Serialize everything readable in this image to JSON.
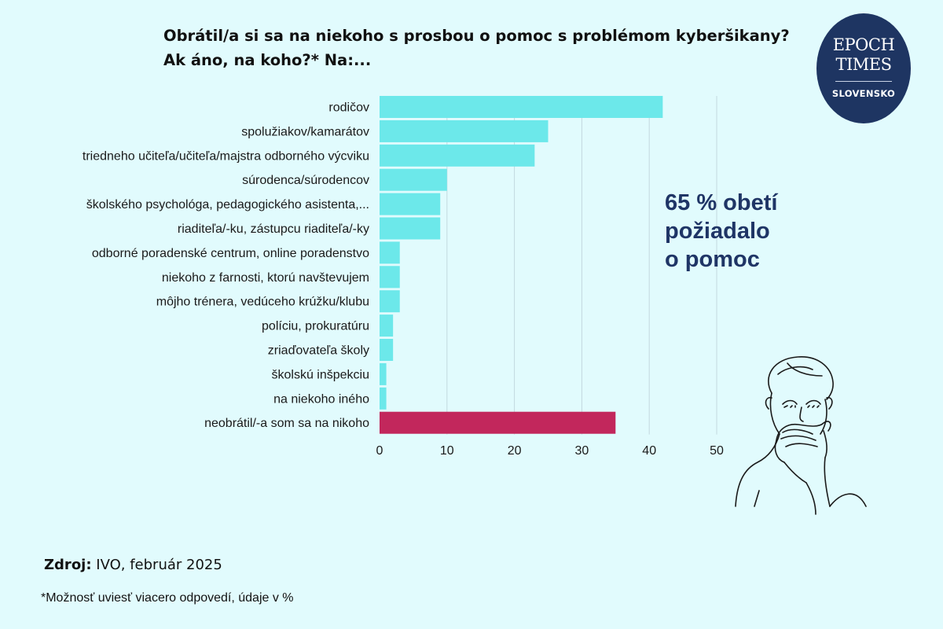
{
  "title_lines": [
    "Obrátil/a si sa na niekoho s prosbou o pomoc s problémom kyberšikany?",
    "Ak áno, na koho?* Na:..."
  ],
  "callout_lines": [
    "65 % obetí",
    "požiadalo",
    "o pomoc"
  ],
  "logo": {
    "line1": "EPOCH",
    "line2": "TIMES",
    "line3": "SLOVENSKO"
  },
  "source": {
    "label": "Zdroj:",
    "text": "IVO, február 2025"
  },
  "footnote": "*Možnosť uviesť viacero odpovedí, údaje v %",
  "colors": {
    "bar": "#6ce8ea",
    "highlight": "#c2275c",
    "callout": "#1f3566",
    "logo_bg": "#1e3562",
    "background": "#e1fbfd",
    "grid": "#c2d9df"
  },
  "illustration_icon": "embarrassed-person-covering-mouth-icon",
  "chart_data": {
    "type": "bar",
    "orientation": "horizontal",
    "categories": [
      "rodičov",
      "spolužiakov/kamarátov",
      "triedneho učiteľa/učiteľa/majstra odborného výcviku",
      "súrodenca/súrodencov",
      "školského psychológa, pedagogického asistenta,...",
      "riaditeľa/-ku, zástupcu riaditeľa/-ky",
      "odborné poradenské centrum, online poradenstvo",
      "niekoho z farnosti, ktorú navštevujem",
      "môjho trénera, vedúceho krúžku/klubu",
      "políciu, prokuratúru",
      "zriaďovateľa školy",
      "školskú inšpekciu",
      "na niekoho iného",
      "neobrátil/-a som sa na nikoho"
    ],
    "values": [
      42,
      25,
      23,
      10,
      9,
      9,
      3,
      3,
      3,
      2,
      2,
      1,
      1,
      35
    ],
    "highlight_index": 13,
    "xlim": [
      0,
      50
    ],
    "xticks": [
      0,
      10,
      20,
      30,
      40,
      50
    ],
    "grid": "vertical",
    "xlabel": "",
    "ylabel": ""
  }
}
